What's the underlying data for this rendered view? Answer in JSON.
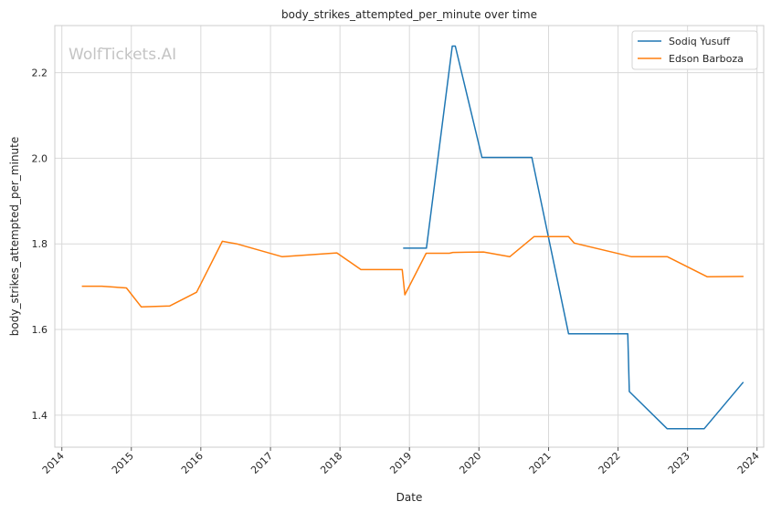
{
  "chart_data": {
    "type": "line",
    "title": "body_strikes_attempted_per_minute over time",
    "xlabel": "Date",
    "ylabel": "body_strikes_attempted_per_minute",
    "watermark": "WolfTickets.AI",
    "xlim": [
      "2013-11-25",
      "2024-02-05"
    ],
    "ylim": [
      1.325,
      2.31
    ],
    "x_ticks": [
      "2014",
      "2015",
      "2016",
      "2017",
      "2018",
      "2019",
      "2020",
      "2021",
      "2022",
      "2023",
      "2024"
    ],
    "y_ticks": [
      1.4,
      1.6,
      1.8,
      2.0,
      2.2
    ],
    "y_tick_labels": [
      "1.4",
      "1.6",
      "1.8",
      "2.0",
      "2.2"
    ],
    "grid": true,
    "legend_position": "top-right",
    "colors": {
      "Sodiq Yusuff": "#1f77b4",
      "Edson Barboza": "#ff7f0e"
    },
    "series": [
      {
        "name": "Sodiq Yusuff",
        "x": [
          "2018-11-29",
          "2019-03-31",
          "2019-08-14",
          "2019-08-30",
          "2020-01-17",
          "2020-10-05",
          "2021-04-16",
          "2022-02-21",
          "2022-03-01",
          "2022-09-16",
          "2023-03-29",
          "2023-10-21"
        ],
        "y": [
          1.79,
          1.79,
          2.262,
          2.262,
          2.002,
          2.002,
          1.59,
          1.59,
          1.455,
          1.368,
          1.368,
          1.477
        ]
      },
      {
        "name": "Edson Barboza",
        "x": [
          "2014-04-16",
          "2014-07-30",
          "2014-12-06",
          "2015-02-22",
          "2015-07-22",
          "2015-12-10",
          "2016-04-23",
          "2016-07-08",
          "2017-03-04",
          "2017-12-16",
          "2018-04-21",
          "2018-11-24",
          "2018-12-08",
          "2019-03-30",
          "2019-07-30",
          "2019-08-17",
          "2020-01-25",
          "2020-06-11",
          "2020-10-17",
          "2021-04-16",
          "2021-05-15",
          "2022-03-13",
          "2022-09-17",
          "2023-04-15",
          "2023-10-22"
        ],
        "y": [
          1.701,
          1.701,
          1.697,
          1.653,
          1.655,
          1.687,
          1.806,
          1.8,
          1.77,
          1.779,
          1.74,
          1.74,
          1.681,
          1.778,
          1.778,
          1.78,
          1.781,
          1.77,
          1.817,
          1.817,
          1.802,
          1.77,
          1.77,
          1.723,
          1.724
        ]
      }
    ]
  }
}
